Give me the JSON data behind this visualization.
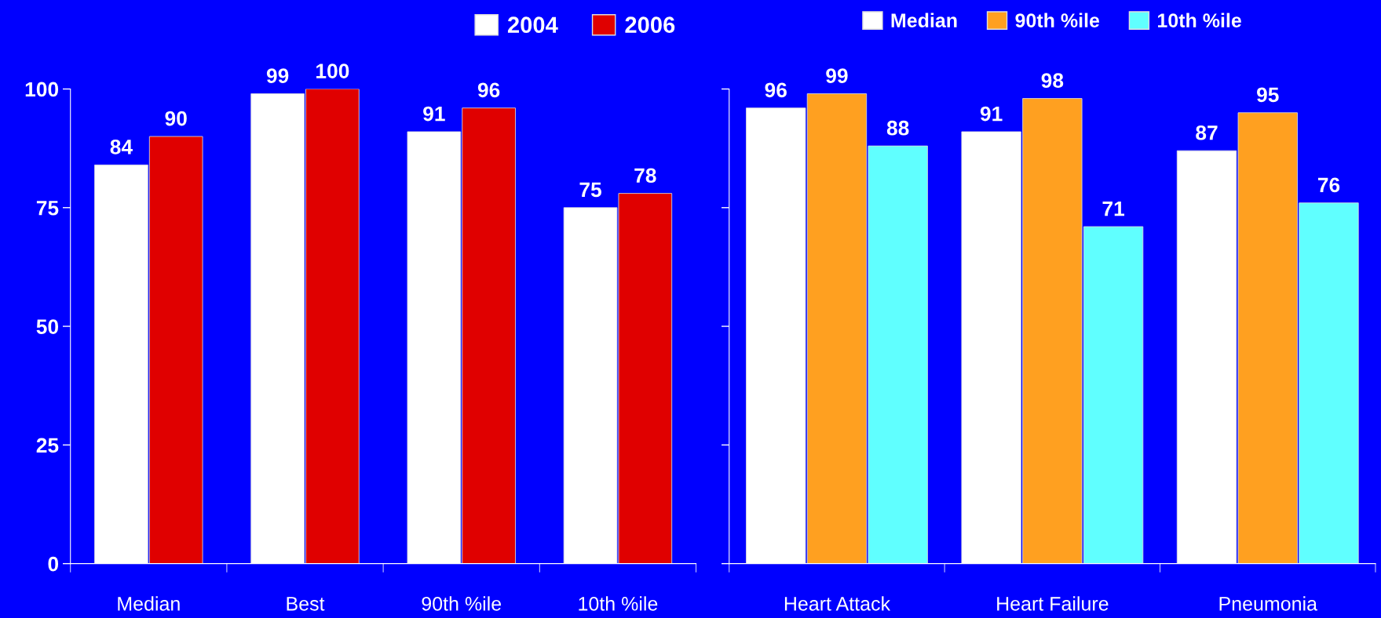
{
  "chart_data": [
    {
      "type": "bar",
      "categories": [
        "Median",
        "Best",
        "90th %ile",
        "10th %ile"
      ],
      "series": [
        {
          "name": "2004",
          "color": "#ffffff",
          "values": [
            84,
            99,
            91,
            75
          ]
        },
        {
          "name": "2006",
          "color": "#e00000",
          "values": [
            90,
            100,
            96,
            78
          ]
        }
      ],
      "ylim": [
        0,
        100
      ],
      "yticks": [
        0,
        25,
        50,
        75,
        100
      ],
      "data_labels": true,
      "legend": "top right",
      "grid": false
    },
    {
      "type": "bar",
      "categories": [
        "Heart Attack",
        "Heart Failure",
        "Pneumonia"
      ],
      "series": [
        {
          "name": "Median",
          "color": "#ffffff",
          "values": [
            96,
            91,
            87
          ]
        },
        {
          "name": "90th %ile",
          "color": "#ffa020",
          "values": [
            99,
            98,
            95
          ]
        },
        {
          "name": "10th %ile",
          "color": "#60ffff",
          "values": [
            88,
            71,
            76
          ]
        }
      ],
      "ylim": [
        0,
        100
      ],
      "yticks": [
        {
          "value": 0,
          "label": null
        },
        {
          "value": 25,
          "label": null
        },
        {
          "value": 50,
          "label": null
        },
        {
          "value": 75,
          "label": null
        },
        {
          "value": 100,
          "label": null
        }
      ],
      "tick_labels": "x",
      "data_labels": true,
      "legend": "top",
      "grid": false
    }
  ]
}
